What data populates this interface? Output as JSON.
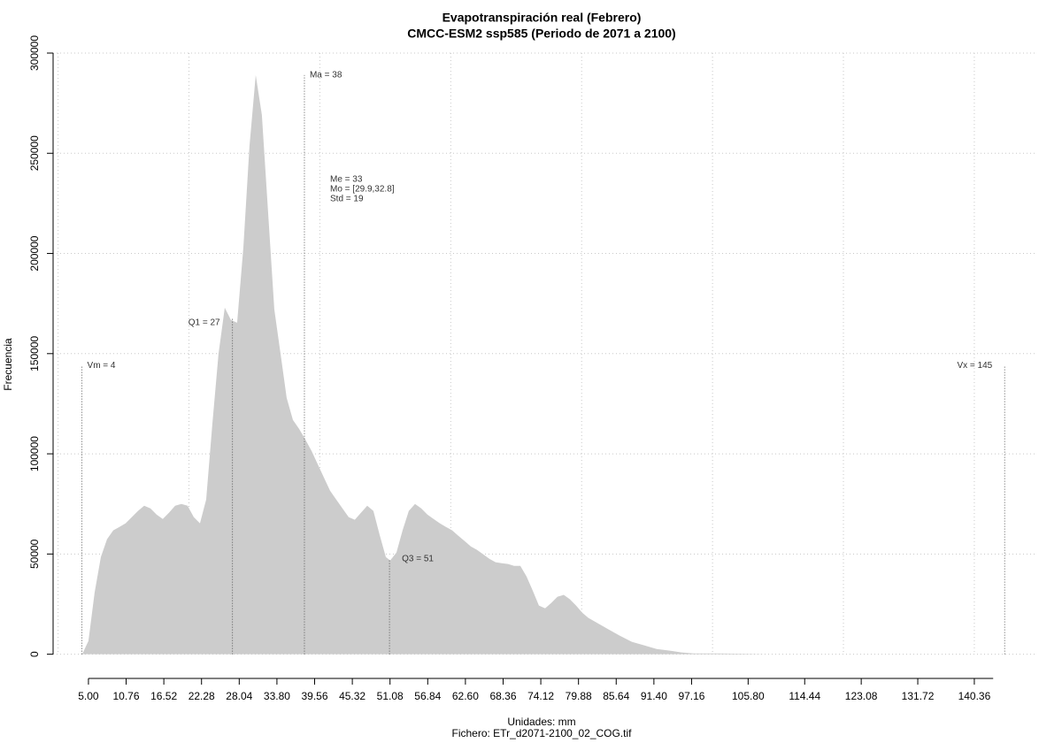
{
  "chart_data": {
    "type": "area",
    "title": "Evapotranspiración real (Febrero)",
    "subtitle": "CMCC-ESM2 ssp585 (Periodo de 2071 a 2100)",
    "x_label": "Unidades: mm",
    "x_sublabel": "Fichero: ETr_d2071-2100_02_COG.tif",
    "y_label": "Frecuencia",
    "color": "#cccccc",
    "grid": true,
    "xlim": [
      -0.4,
      149.7
    ],
    "ylim": [
      -9000,
      300000
    ],
    "xticks": [
      {
        "value": 5,
        "label": "5.00"
      },
      10.76,
      16.52,
      22.28,
      28.04,
      {
        "value": 33.8,
        "label": "33.80"
      },
      39.56,
      45.32,
      51.08,
      56.84,
      {
        "value": 62.6,
        "label": "62.60"
      },
      68.36,
      74.12,
      79.88,
      85.64,
      {
        "value": 91.4,
        "label": "91.40"
      },
      97.16,
      {
        "value": 105.8,
        "label": "105.80"
      },
      114.44,
      123.08,
      131.72,
      140.36
    ],
    "xgrid": [
      0.36,
      20.36,
      40.36,
      60.36,
      80.36,
      100.36,
      120.36,
      140.36
    ],
    "yticks": [
      0,
      50000,
      100000,
      150000,
      200000,
      250000,
      300000
    ],
    "x": [
      4.05,
      5.0,
      5.95,
      6.9,
      7.84,
      8.79,
      9.73,
      10.68,
      11.63,
      12.57,
      13.52,
      14.47,
      15.41,
      16.36,
      17.31,
      18.25,
      19.2,
      20.15,
      21.09,
      22.04,
      22.99,
      23.93,
      24.88,
      25.83,
      26.77,
      27.72,
      28.67,
      29.61,
      30.56,
      31.5,
      32.45,
      33.4,
      34.35,
      35.29,
      36.24,
      37.18,
      38.13,
      39.08,
      40.02,
      40.97,
      41.92,
      42.86,
      43.81,
      44.76,
      45.7,
      46.65,
      47.6,
      48.54,
      49.49,
      50.44,
      51.11,
      52.06,
      53.0,
      53.95,
      54.9,
      55.85,
      56.79,
      57.74,
      58.69,
      59.63,
      60.58,
      61.52,
      62.47,
      63.42,
      64.36,
      65.31,
      66.26,
      67.2,
      68.15,
      69.1,
      70.04,
      70.99,
      71.94,
      72.88,
      73.83,
      74.78,
      75.72,
      76.67,
      77.62,
      78.56,
      79.51,
      80.46,
      81.4,
      82.35,
      84.24,
      86.14,
      88.03,
      89.92,
      91.82,
      93.71,
      95.6,
      97.5,
      101.0,
      105.07,
      109.1,
      144.3
    ],
    "values": [
      0,
      6600,
      30900,
      48500,
      57400,
      61800,
      63500,
      65300,
      68400,
      71500,
      74100,
      72800,
      69700,
      67500,
      70600,
      74100,
      75000,
      74100,
      68400,
      65300,
      77200,
      114700,
      150000,
      172900,
      166800,
      165400,
      202900,
      253700,
      289000,
      269100,
      220600,
      172100,
      150000,
      127900,
      116900,
      112500,
      107200,
      101500,
      94900,
      88200,
      81600,
      77200,
      72800,
      68400,
      67100,
      70600,
      74100,
      71500,
      59600,
      48500,
      46800,
      50700,
      61800,
      71500,
      75000,
      72800,
      69700,
      67500,
      65300,
      63500,
      61800,
      59100,
      56500,
      53800,
      52100,
      49900,
      47600,
      45900,
      45400,
      45000,
      44100,
      44100,
      38800,
      31800,
      24300,
      22900,
      25600,
      28700,
      29600,
      27400,
      24300,
      20700,
      18100,
      16300,
      12800,
      9300,
      6200,
      4400,
      2600,
      1800,
      900,
      400,
      400,
      200,
      0,
      0
    ],
    "markers": [
      {
        "label": "Vm = 4",
        "x": 4,
        "y": 144000
      },
      {
        "label": "Q1 = 27",
        "x": 27,
        "y": 167600
      },
      {
        "label": "Ma = 38",
        "x": 38,
        "y": 289000
      },
      {
        "label": "Q3 = 51",
        "x": 51,
        "y": 47600
      },
      {
        "label": "Vx = 145",
        "x": 145,
        "y": 144000
      }
    ],
    "stats": [
      "Me = 33",
      "Mo = [29.9,32.8]",
      "Std = 19"
    ]
  }
}
